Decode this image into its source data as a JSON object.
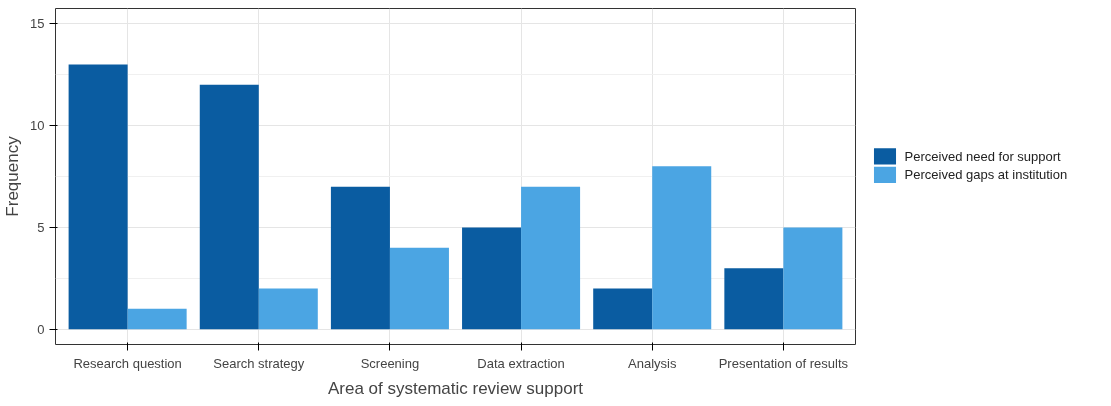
{
  "chart_data": {
    "type": "bar",
    "xlabel": "Area of systematic review support",
    "ylabel": "Frequency",
    "categories": [
      "Research question",
      "Search strategy",
      "Screening",
      "Data extraction",
      "Analysis",
      "Presentation of results"
    ],
    "series": [
      {
        "name": "Perceived need for support",
        "color": "#0a5ca1",
        "values": [
          13,
          12,
          7,
          5,
          2,
          3
        ]
      },
      {
        "name": "Perceived gaps at institution",
        "color": "#4ba5e3",
        "values": [
          1,
          2,
          4,
          7,
          8,
          5
        ]
      }
    ],
    "ylim": [
      -0.75,
      15.75
    ],
    "yticks": [
      0,
      5,
      10,
      15
    ],
    "grid": true,
    "legend": "right"
  }
}
